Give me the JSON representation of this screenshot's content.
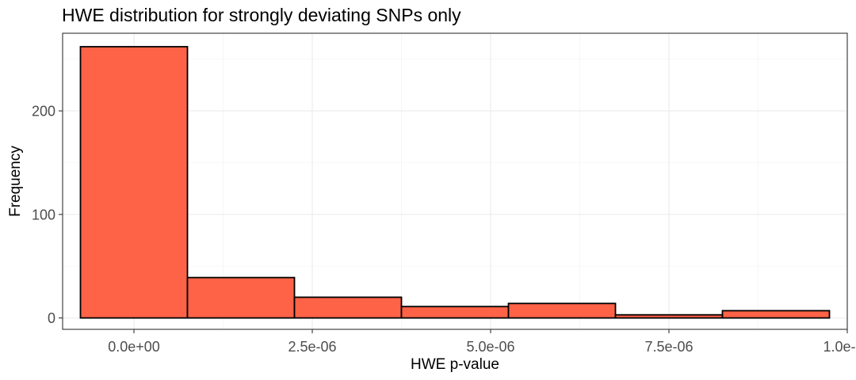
{
  "chart_data": {
    "type": "bar",
    "title": "HWE distribution for strongly deviating SNPs only",
    "xlabel": "HWE p-value",
    "ylabel": "Frequency",
    "xlim": [
      -1e-06,
      1e-05
    ],
    "ylim": [
      -11,
      275
    ],
    "x_ticks": [
      0,
      2.5e-06,
      5e-06,
      7.5e-06,
      1e-05
    ],
    "x_tick_labels": [
      "0.0e+00",
      "2.5e-06",
      "5.0e-06",
      "7.5e-06",
      "1.0e-05"
    ],
    "y_ticks": [
      0,
      100,
      200
    ],
    "y_tick_labels": [
      "0",
      "100",
      "200"
    ],
    "bins": [
      {
        "x0": -7.5e-07,
        "x1": 7.5e-07,
        "count": 262
      },
      {
        "x0": 7.5e-07,
        "x1": 2.25e-06,
        "count": 39
      },
      {
        "x0": 2.25e-06,
        "x1": 3.75e-06,
        "count": 20
      },
      {
        "x0": 3.75e-06,
        "x1": 5.25e-06,
        "count": 11
      },
      {
        "x0": 5.25e-06,
        "x1": 6.75e-06,
        "count": 14
      },
      {
        "x0": 6.75e-06,
        "x1": 8.25e-06,
        "count": 3
      },
      {
        "x0": 8.25e-06,
        "x1": 9.75e-06,
        "count": 7
      }
    ],
    "fill_color": "#FF6347",
    "outline_color": "#000000",
    "grid": true
  }
}
